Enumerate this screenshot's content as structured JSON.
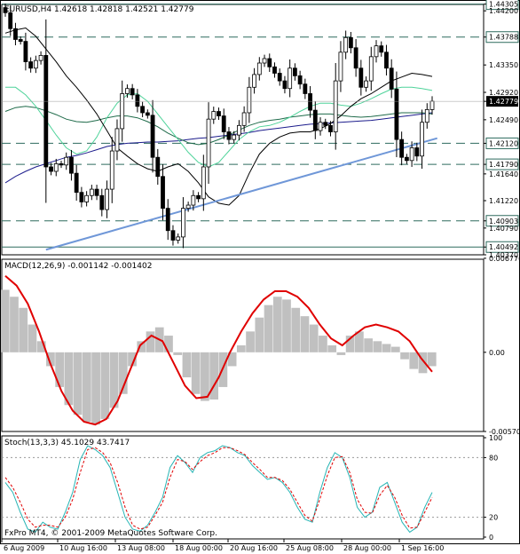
{
  "colors": {
    "background": "#ffffff",
    "frame": "#000000",
    "grid": "#000000",
    "candle": "#000000",
    "level_line": "#2e6b5e",
    "trend_line": "#6f97d8",
    "ma_black": "#000000",
    "ma_green": "#4fd39a",
    "ma_dark_green": "#1f6b4a",
    "ma_navy": "#1c1c8c",
    "macd_hist": "#c0c0c0",
    "macd_signal": "#e00000",
    "stoch_main": "#27b5b5",
    "stoch_signal": "#e00000",
    "price_box": "#000000"
  },
  "chart_data": [
    {
      "type": "candlestick",
      "title": "EURUSD,H4  1.42618  1.42818  1.42521  1.42779",
      "last_price_label": "1.42779",
      "ylim": [
        1.4037,
        1.443
      ],
      "y_ticks": [
        "1.44305",
        "1.44200",
        "1.43788",
        "1.43350",
        "1.42920",
        "1.42779",
        "1.42490",
        "1.42120",
        "1.41790",
        "1.41640",
        "1.41220",
        "1.40903",
        "1.40790",
        "1.40492",
        "1.40370"
      ],
      "levels": [
        1.44305,
        1.43788,
        1.4212,
        1.4179,
        1.40903,
        1.40492
      ],
      "trendline": {
        "from": [
          8,
          1.4045
        ],
        "to": [
          85,
          1.422
        ]
      },
      "closes": [
        1.4417,
        1.4392,
        1.4375,
        1.4372,
        1.434,
        1.433,
        1.4342,
        1.435,
        1.4175,
        1.4168,
        1.418,
        1.4178,
        1.419,
        1.4165,
        1.4135,
        1.412,
        1.413,
        1.414,
        1.413,
        1.4108,
        1.414,
        1.42,
        1.4235,
        1.429,
        1.4298,
        1.4288,
        1.427,
        1.426,
        1.4256,
        1.419,
        1.416,
        1.411,
        1.4075,
        1.406,
        1.4065,
        1.411,
        1.4115,
        1.413,
        1.4125,
        1.4175,
        1.425,
        1.4262,
        1.4255,
        1.423,
        1.4218,
        1.4225,
        1.424,
        1.426,
        1.43,
        1.432,
        1.4338,
        1.4345,
        1.4332,
        1.4322,
        1.431,
        1.4298,
        1.433,
        1.4318,
        1.4305,
        1.429,
        1.4264,
        1.4232,
        1.4245,
        1.424,
        1.423,
        1.431,
        1.4355,
        1.4378,
        1.4362,
        1.433,
        1.43,
        1.431,
        1.4348,
        1.4365,
        1.4355,
        1.433,
        1.4297,
        1.4218,
        1.419,
        1.4185,
        1.4205,
        1.4192,
        1.4245,
        1.4265,
        1.4278
      ],
      "ma_black": [
        1.4385,
        1.439,
        1.4393,
        1.438,
        1.436,
        1.434,
        1.4318,
        1.43,
        1.428,
        1.4258,
        1.4232,
        1.4205,
        1.4192,
        1.418,
        1.4172,
        1.4168,
        1.4175,
        1.418,
        1.4168,
        1.415,
        1.4128,
        1.4118,
        1.4115,
        1.413,
        1.4165,
        1.4195,
        1.4212,
        1.4222,
        1.4228,
        1.423,
        1.423,
        1.4235,
        1.4243,
        1.4255,
        1.427,
        1.4282,
        1.429,
        1.43,
        1.431,
        1.4316,
        1.4322,
        1.432,
        1.4317
      ],
      "ma_green": [
        1.43,
        1.43,
        1.4288,
        1.427,
        1.4248,
        1.4225,
        1.4205,
        1.4195,
        1.42,
        1.4222,
        1.4252,
        1.4275,
        1.4288,
        1.429,
        1.4278,
        1.4258,
        1.4238,
        1.4218,
        1.4198,
        1.4182,
        1.4175,
        1.4182,
        1.42,
        1.4218,
        1.423,
        1.4238,
        1.424,
        1.4245,
        1.4253,
        1.4262,
        1.427,
        1.4275,
        1.4275,
        1.4272,
        1.427,
        1.4275,
        1.4282,
        1.429,
        1.4297,
        1.43,
        1.43,
        1.4298,
        1.4295
      ],
      "ma_dark_green": [
        1.4262,
        1.4268,
        1.427,
        1.4268,
        1.4263,
        1.4257,
        1.425,
        1.4246,
        1.4245,
        1.4248,
        1.4252,
        1.4255,
        1.4255,
        1.4252,
        1.4246,
        1.4238,
        1.4228,
        1.422,
        1.4213,
        1.421,
        1.4212,
        1.4218,
        1.4225,
        1.4233,
        1.424,
        1.4245,
        1.4248,
        1.425,
        1.4253,
        1.4255,
        1.4257,
        1.4258,
        1.4258,
        1.4256,
        1.4254,
        1.4253,
        1.4254,
        1.4256,
        1.4258,
        1.426,
        1.426,
        1.426,
        1.4258
      ],
      "ma_navy": [
        1.415,
        1.416,
        1.4168,
        1.4175,
        1.418,
        1.4185,
        1.419,
        1.4193,
        1.4197,
        1.4202,
        1.4207,
        1.421,
        1.4212,
        1.4213,
        1.4214,
        1.4214,
        1.4215,
        1.4216,
        1.4218,
        1.422,
        1.4221,
        1.4223,
        1.4225,
        1.4227,
        1.4229,
        1.4232,
        1.4234,
        1.4236,
        1.4238,
        1.424,
        1.4242,
        1.4243,
        1.4244,
        1.4245,
        1.4246,
        1.4247,
        1.4248,
        1.425,
        1.4252,
        1.4254,
        1.4256,
        1.4258,
        1.426
      ]
    },
    {
      "type": "histogram+line",
      "title": "MACD(12,26,9) -0.001142 -0.001402",
      "ylim": [
        -0.0057,
        0.0067
      ],
      "y_ticks": [
        "0.006770",
        "0.00",
        "-0.005700"
      ],
      "histogram": [
        0.0045,
        0.004,
        0.0032,
        0.002,
        0.0008,
        -0.001,
        -0.0025,
        -0.0038,
        -0.0045,
        -0.005,
        -0.0052,
        -0.0048,
        -0.004,
        -0.003,
        -0.001,
        0.0008,
        0.0015,
        0.0018,
        0.0012,
        -0.0002,
        -0.0018,
        -0.003,
        -0.0035,
        -0.0034,
        -0.0025,
        -0.001,
        0.0005,
        0.0015,
        0.0025,
        0.0034,
        0.004,
        0.0038,
        0.0032,
        0.0026,
        0.002,
        0.0012,
        0.0005,
        -0.0002,
        0.0012,
        0.0015,
        0.001,
        0.0008,
        0.0006,
        0.0004,
        -0.0005,
        -0.0012,
        -0.0015,
        -0.001
      ],
      "signal": [
        0.0055,
        0.0048,
        0.0035,
        0.0015,
        -0.0008,
        -0.0028,
        -0.0042,
        -0.005,
        -0.0052,
        -0.0048,
        -0.0035,
        -0.0015,
        0.0005,
        0.0012,
        0.0008,
        -0.0008,
        -0.0024,
        -0.0033,
        -0.0032,
        -0.0018,
        0.0,
        0.0015,
        0.0028,
        0.0038,
        0.0044,
        0.0044,
        0.004,
        0.0032,
        0.002,
        0.001,
        0.0005,
        0.0012,
        0.0018,
        0.002,
        0.0018,
        0.0015,
        0.0008,
        -0.0004,
        -0.0014
      ]
    },
    {
      "type": "line",
      "title": "Stoch(13,3,3) 45.1029 43.7417",
      "ylim": [
        0,
        100
      ],
      "y_ticks": [
        "100",
        "80",
        "20",
        "0"
      ],
      "levels": [
        80,
        20
      ],
      "main": [
        55,
        45,
        25,
        8,
        5,
        15,
        10,
        8,
        25,
        45,
        78,
        92,
        88,
        82,
        70,
        45,
        20,
        8,
        6,
        12,
        25,
        40,
        70,
        82,
        75,
        65,
        80,
        85,
        87,
        92,
        90,
        85,
        82,
        72,
        65,
        58,
        60,
        55,
        45,
        30,
        18,
        15,
        45,
        70,
        85,
        80,
        60,
        30,
        20,
        25,
        50,
        55,
        35,
        15,
        5,
        10,
        30,
        45
      ],
      "signal": [
        60,
        50,
        35,
        18,
        10,
        12,
        12,
        10,
        20,
        38,
        65,
        88,
        90,
        85,
        75,
        55,
        30,
        12,
        8,
        10,
        22,
        35,
        60,
        78,
        76,
        68,
        76,
        82,
        85,
        90,
        90,
        87,
        83,
        75,
        68,
        60,
        60,
        57,
        48,
        35,
        22,
        16,
        38,
        62,
        80,
        81,
        65,
        38,
        25,
        24,
        42,
        52,
        40,
        22,
        9,
        10,
        25,
        40
      ],
      "x_ticks": [
        "6 Aug 2009",
        "10 Aug 16:00",
        "13 Aug 08:00",
        "18 Aug 00:00",
        "20 Aug 16:00",
        "25 Aug 08:00",
        "28 Aug 00:00",
        "1 Sep 16:00"
      ]
    }
  ],
  "copyright": "FxPro MT4, © 2001-2009 MetaQuotes Software Corp."
}
